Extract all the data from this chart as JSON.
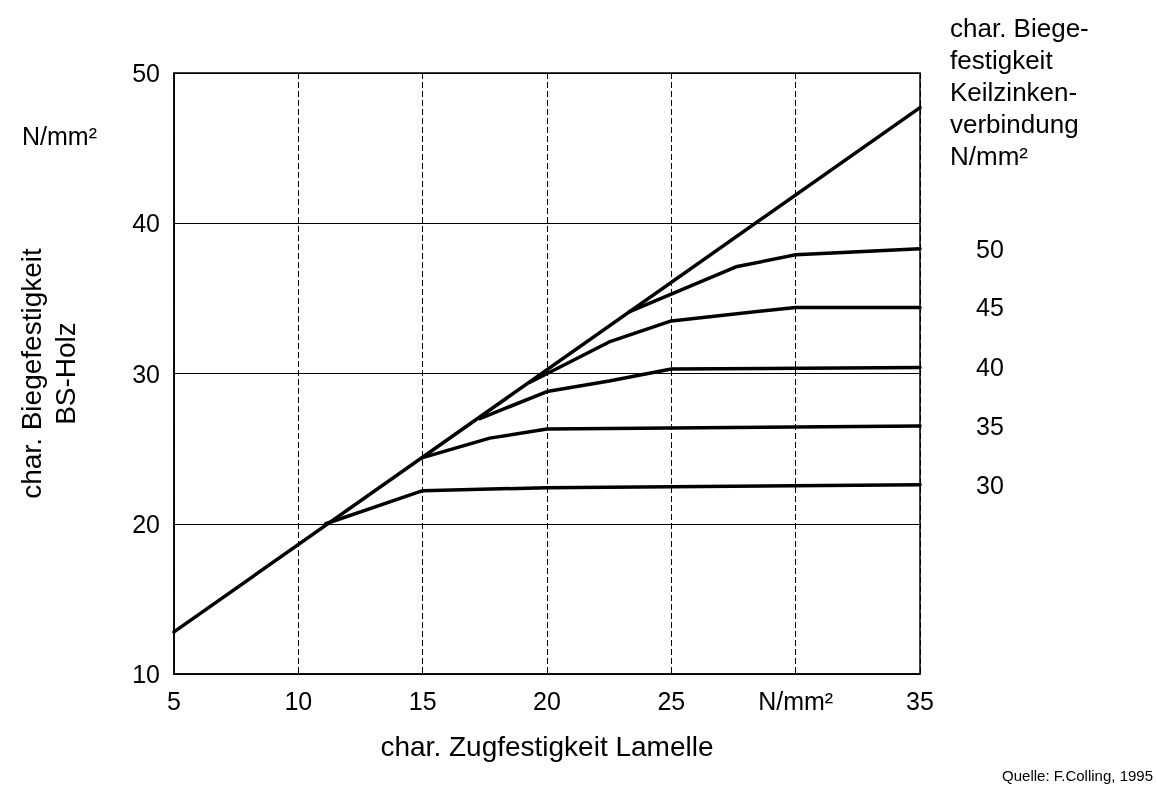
{
  "chart_data": {
    "type": "line",
    "xlabel": "char. Zugfestigkeit Lamelle",
    "ylabel": "char. Biegefestigkeit\nBS-Holz",
    "legend_title": "char. Biege-\nfestigkeit\nKeilzinken-\nverbindung\nN/mm²",
    "annotations": [
      "N/mm²",
      "Quelle: F.Colling, 1995"
    ],
    "xlim": [
      5,
      35
    ],
    "xticks": [
      5,
      10,
      15,
      20,
      25,
      {
        "value": 30,
        "label": "N/mm²"
      },
      35
    ],
    "ylim": [
      10,
      50
    ],
    "yticks": [
      10,
      20,
      30,
      40,
      50
    ],
    "grid": true,
    "marker": "none",
    "line_style": "solid",
    "legend": false,
    "series": [
      {
        "color": "#000000",
        "x": [
          5,
          35
        ],
        "values": [
          12.8,
          47.7
        ]
      },
      {
        "name": "50",
        "color": "#000000",
        "x": [
          23.3,
          27.6,
          30,
          35
        ],
        "values": [
          34.1,
          37.1,
          37.9,
          38.3
        ]
      },
      {
        "name": "45",
        "color": "#000000",
        "x": [
          19.3,
          22.5,
          25,
          30,
          35
        ],
        "values": [
          29.4,
          32.1,
          33.5,
          34.4,
          34.4
        ]
      },
      {
        "name": "40",
        "color": "#000000",
        "x": [
          17.3,
          20,
          22.5,
          25,
          35
        ],
        "values": [
          27.0,
          28.8,
          29.5,
          30.3,
          30.4
        ]
      },
      {
        "name": "35",
        "color": "#000000",
        "x": [
          15,
          17.7,
          20,
          35
        ],
        "values": [
          24.4,
          25.7,
          26.3,
          26.5
        ]
      },
      {
        "name": "30",
        "color": "#000000",
        "x": [
          11.1,
          15,
          20,
          35
        ],
        "values": [
          20.0,
          22.2,
          22.4,
          22.6
        ]
      }
    ]
  }
}
